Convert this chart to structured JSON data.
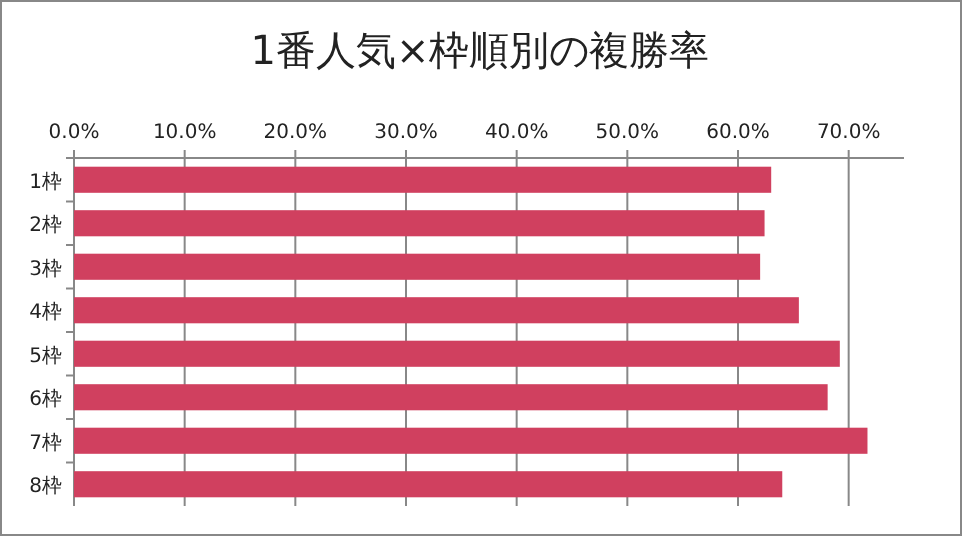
{
  "chart_data": {
    "type": "bar",
    "orientation": "horizontal",
    "title": "1番人気×枠順別の複勝率",
    "categories": [
      "1枠",
      "2枠",
      "3枠",
      "4枠",
      "5枠",
      "6枠",
      "7枠",
      "8枠"
    ],
    "values": [
      63.0,
      62.4,
      62.0,
      65.5,
      69.2,
      68.1,
      71.7,
      64.0
    ],
    "color": "#d0405f",
    "xlim": [
      0,
      75
    ],
    "xticks": [
      {
        "value": 0,
        "label": "0.0%"
      },
      {
        "value": 10,
        "label": "10.0%"
      },
      {
        "value": 20,
        "label": "20.0%"
      },
      {
        "value": 30,
        "label": "30.0%"
      },
      {
        "value": 40,
        "label": "40.0%"
      },
      {
        "value": 50,
        "label": "50.0%"
      },
      {
        "value": 60,
        "label": "60.0%"
      },
      {
        "value": 70,
        "label": "70.0%"
      }
    ],
    "grid": "x"
  }
}
